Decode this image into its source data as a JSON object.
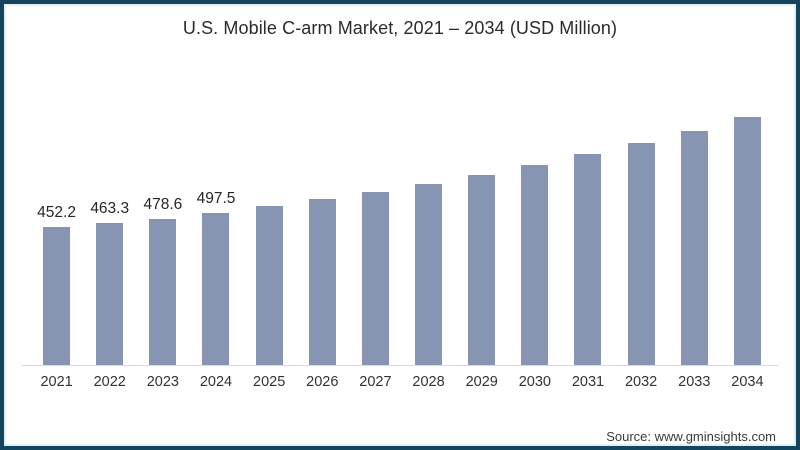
{
  "title": "U.S. Mobile C-arm Market, 2021 – 2034 (USD Million)",
  "source": "Source: www.gminsights.com",
  "colors": {
    "bar": "#8795b2",
    "frame_border": "#14465f",
    "frame_inner_edge": "#e2eff5",
    "axis_line": "#d9d9d9",
    "title_text": "#2b2b2b",
    "label_text": "#262626"
  },
  "chart_data": {
    "type": "bar",
    "title": "U.S. Mobile C-arm Market, 2021 – 2034 (USD Million)",
    "categories": [
      "2021",
      "2022",
      "2023",
      "2024",
      "2025",
      "2026",
      "2027",
      "2028",
      "2029",
      "2030",
      "2031",
      "2032",
      "2033",
      "2034"
    ],
    "values": [
      452.2,
      463.3,
      478.6,
      497.5,
      519,
      542,
      566,
      592,
      620,
      652,
      688,
      725,
      765,
      810
    ],
    "value_labels": [
      "452.2",
      "463.3",
      "478.6",
      "497.5",
      "",
      "",
      "",
      "",
      "",
      "",
      "",
      "",
      "",
      ""
    ],
    "unit": "USD Million",
    "xlabel": "",
    "ylabel": "",
    "ylim": [
      0,
      850
    ],
    "grid": false,
    "legend": null,
    "y_axis_visible": false,
    "note": "values for 2025-2034 estimated from bar heights; only 2021-2024 carry printed data labels"
  }
}
